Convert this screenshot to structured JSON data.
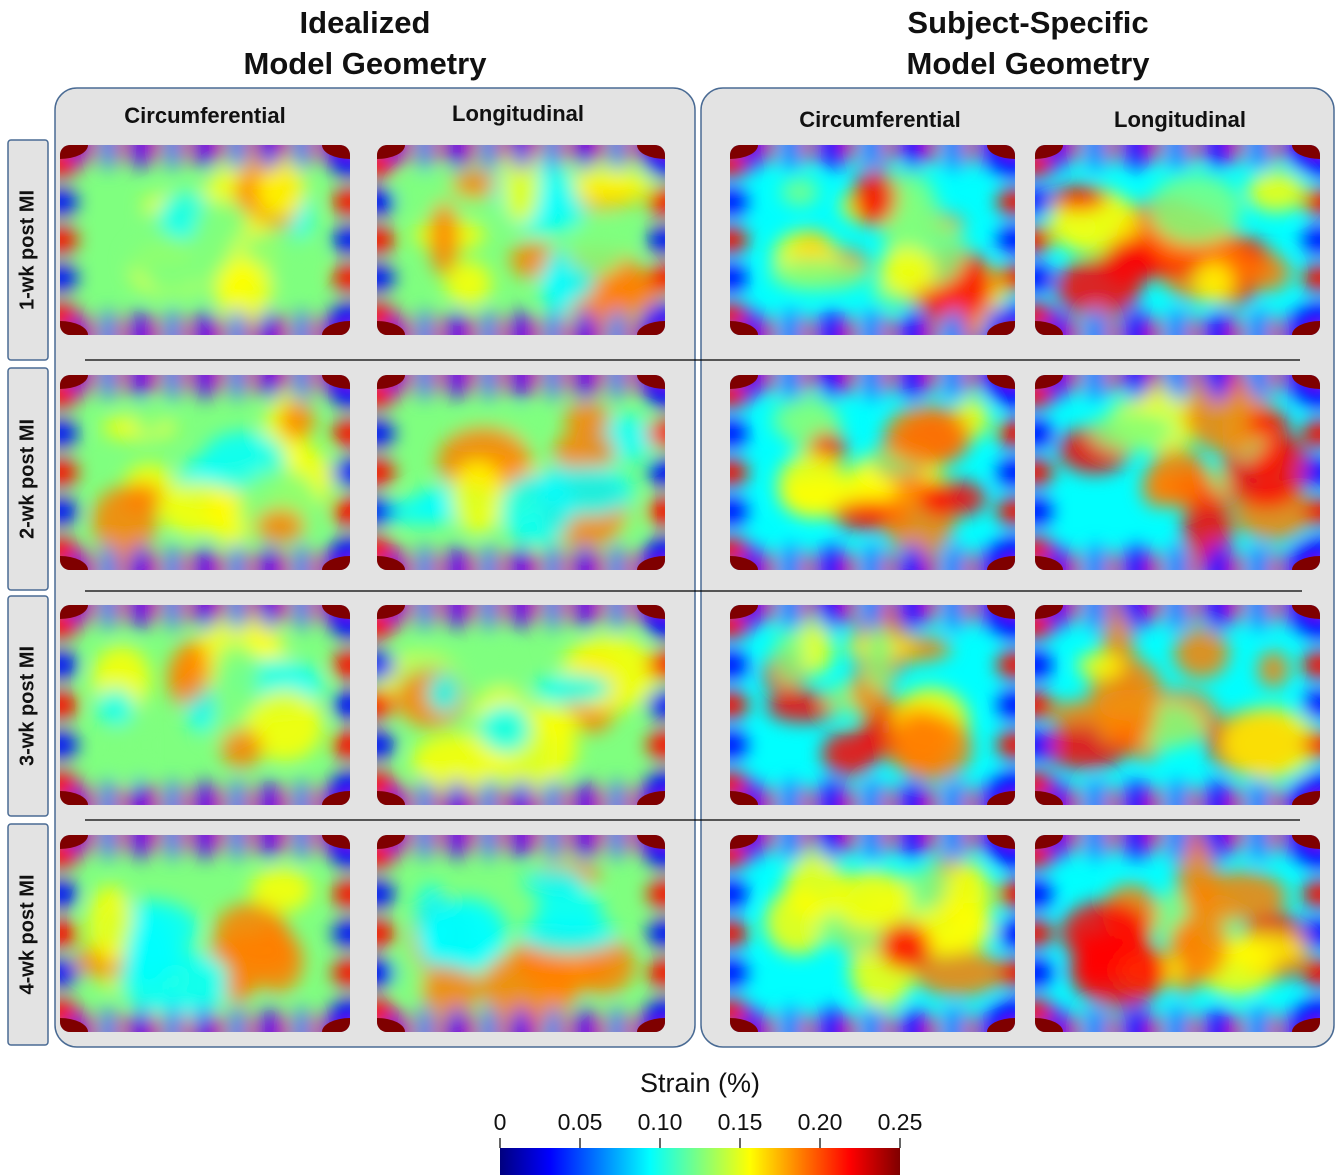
{
  "groups": [
    {
      "title_lines": [
        "Idealized",
        "Model Geometry"
      ],
      "columns": [
        "Circumferential",
        "Longitudinal"
      ]
    },
    {
      "title_lines": [
        "Subject-Specific",
        "Model Geometry"
      ],
      "columns": [
        "Circumferential",
        "Longitudinal"
      ]
    }
  ],
  "rows": [
    "1-wk post MI",
    "2-wk post MI",
    "3-wk post MI",
    "4-wk post MI"
  ],
  "colorbar": {
    "title": "Strain (%)",
    "lim": [
      0,
      0.25
    ],
    "ticks": [
      0,
      0.05,
      {
        "value": 0.1,
        "label": "0.10"
      },
      0.15,
      {
        "value": 0.2,
        "label": "0.20"
      },
      0.25
    ],
    "colors": [
      "#00007f",
      "#0000ff",
      "#007fff",
      "#00ffff",
      "#7fff7f",
      "#ffff00",
      "#ff7f00",
      "#ff0000",
      "#7f0000"
    ]
  }
}
